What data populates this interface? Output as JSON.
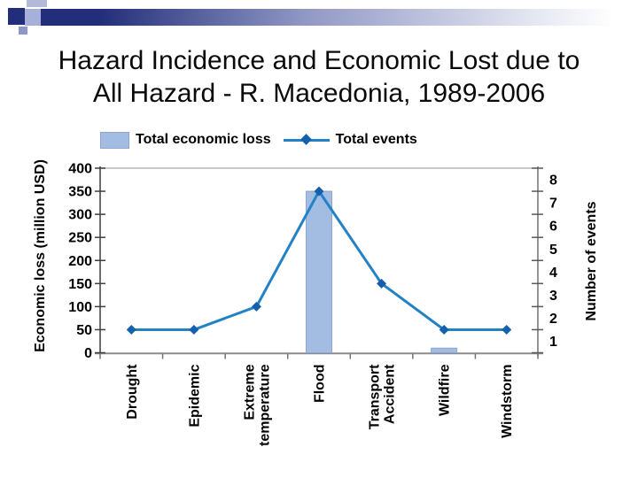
{
  "slide": {
    "title": {
      "line1": "Hazard Incidence and Economic Lost due to",
      "line2": "All Hazard - R. Macedonia, 1989-2006"
    }
  },
  "chart_data": {
    "type": "combo",
    "title": "Hazard Incidence and Economic Lost due to All Hazard - R. Macedonia, 1989-2006",
    "categories": [
      "Drought",
      "Epidemic",
      "Extreme temperature",
      "Flood",
      "Transport Accident",
      "Wildfire",
      "Windstorm"
    ],
    "series": [
      {
        "name": "Total economic loss",
        "type": "bar",
        "axis": "left",
        "values": [
          0,
          0,
          0,
          350,
          0,
          10,
          0
        ],
        "color": "#a3bce2",
        "border_color": "#8ba6d6"
      },
      {
        "name": "Total events",
        "type": "line",
        "axis": "right",
        "values": [
          2,
          2,
          3,
          8,
          4,
          2,
          2
        ],
        "color": "#2382c6",
        "marker": "diamond",
        "marker_color": "#1460ad"
      }
    ],
    "left_axis": {
      "title": "Economic loss (million USD)",
      "min": 0,
      "max": 400,
      "step": 50,
      "ticks": [
        0,
        50,
        100,
        150,
        200,
        250,
        300,
        350,
        400
      ]
    },
    "right_axis": {
      "title": "Number of events",
      "min": 1,
      "max": 9,
      "step": 1,
      "labels": [
        1,
        2,
        3,
        4,
        5,
        6,
        7,
        8
      ]
    },
    "legend_position": "top",
    "grid": "off"
  },
  "colors": {
    "banner_navy": "#232e7a",
    "axis_dark": "#3f3f3f",
    "axis_gray": "#8c8c8c",
    "plot_border": "#a8a8a8"
  }
}
